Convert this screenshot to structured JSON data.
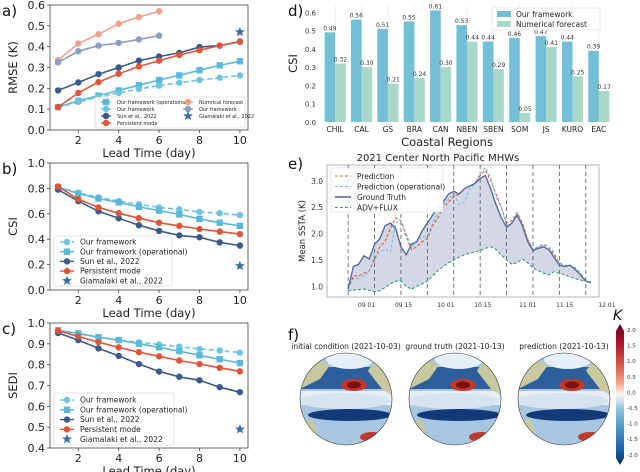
{
  "panels": {
    "a": {
      "label": "a)"
    },
    "b": {
      "label": "b)"
    },
    "c": {
      "label": "c)"
    },
    "d": {
      "label": "d)"
    },
    "e": {
      "label": "e)"
    },
    "f": {
      "label": "f)"
    }
  },
  "colors": {
    "our_framework": "#6ec3e0",
    "our_framework_operational": "#5bb8d9",
    "sun": "#3a5a8c",
    "persistent": "#e0553a",
    "numerical": "#f0a08a",
    "our_framework_short": "#8a9bc4",
    "giamalaki": "#3a6aa8",
    "bar_ours": "#74bfd8",
    "bar_numerical": "#a8d8c8",
    "fill_area": "#c9cedd",
    "gt_line": "#5a6a9a",
    "adv_flux": "#2f9a80"
  },
  "chart_data": [
    {
      "id": "a",
      "type": "line",
      "title": "",
      "xlabel": "Lead Time (day)",
      "ylabel": "RMSE (K)",
      "xlim": [
        0.6,
        10.4
      ],
      "ylim": [
        0.0,
        0.6
      ],
      "xticks": [
        2,
        4,
        6,
        8,
        10
      ],
      "yticks": [
        0.0,
        0.1,
        0.2,
        0.3,
        0.4,
        0.5,
        0.6
      ],
      "legend_position": "lower-right",
      "series": [
        {
          "name": "Our framework (operational)",
          "marker": "square",
          "dash": false,
          "color_key": "our_framework_operational",
          "x": [
            1,
            2,
            3,
            4,
            5,
            6,
            7,
            8,
            9,
            10
          ],
          "values": [
            0.11,
            0.14,
            0.165,
            0.19,
            0.215,
            0.24,
            0.262,
            0.287,
            0.31,
            0.33
          ]
        },
        {
          "name": "Our framework",
          "marker": "circle",
          "dash": true,
          "color_key": "our_framework",
          "x": [
            1,
            2,
            3,
            4,
            5,
            6,
            7,
            8,
            9,
            10
          ],
          "values": [
            0.108,
            0.135,
            0.158,
            0.178,
            0.197,
            0.213,
            0.227,
            0.24,
            0.251,
            0.262
          ]
        },
        {
          "name": "Sun et al., 2022",
          "marker": "circle",
          "dash": false,
          "color_key": "sun",
          "x": [
            1,
            2,
            3,
            4,
            5,
            6,
            7,
            8,
            9,
            10
          ],
          "values": [
            0.19,
            0.228,
            0.268,
            0.3,
            0.333,
            0.353,
            0.37,
            0.398,
            0.405,
            0.425
          ]
        },
        {
          "name": "Persistent mode",
          "marker": "circle",
          "dash": false,
          "color_key": "persistent",
          "x": [
            1,
            2,
            3,
            4,
            5,
            6,
            7,
            8,
            9,
            10
          ],
          "values": [
            0.11,
            0.178,
            0.23,
            0.27,
            0.305,
            0.333,
            0.36,
            0.383,
            0.405,
            0.423
          ]
        },
        {
          "name": "Numrical forecast",
          "marker": "circle",
          "dash": false,
          "color_key": "numerical",
          "x": [
            1,
            2,
            3,
            4,
            5,
            6
          ],
          "values": [
            0.335,
            0.415,
            0.46,
            0.51,
            0.542,
            0.57
          ]
        },
        {
          "name": "Our framework",
          "marker": "circle",
          "dash": false,
          "color_key": "our_framework_short",
          "x": [
            1,
            2,
            3,
            4,
            5,
            6
          ],
          "values": [
            0.325,
            0.378,
            0.405,
            0.418,
            0.435,
            0.453
          ]
        },
        {
          "name": "Giamalaki et al., 2022",
          "marker": "star",
          "dash": false,
          "color_key": "giamalaki",
          "x": [
            10
          ],
          "values": [
            0.47
          ]
        }
      ]
    },
    {
      "id": "b",
      "type": "line",
      "xlabel": "Lead Time (day)",
      "ylabel": "CSI",
      "xlim": [
        0.6,
        10.4
      ],
      "ylim": [
        0.0,
        1.0
      ],
      "xticks": [
        2,
        4,
        6,
        8,
        10
      ],
      "yticks": [
        0.0,
        0.2,
        0.4,
        0.6,
        0.8,
        1.0
      ],
      "legend_position": "lower-left",
      "series": [
        {
          "name": "Our framework",
          "marker": "circle",
          "dash": true,
          "color_key": "our_framework",
          "x": [
            1,
            2,
            3,
            4,
            5,
            6,
            7,
            8,
            9,
            10
          ],
          "values": [
            0.81,
            0.765,
            0.73,
            0.7,
            0.675,
            0.65,
            0.635,
            0.615,
            0.605,
            0.59
          ]
        },
        {
          "name": "Our framework (operational)",
          "marker": "square",
          "dash": false,
          "color_key": "our_framework_operational",
          "x": [
            1,
            2,
            3,
            4,
            5,
            6,
            7,
            8,
            9,
            10
          ],
          "values": [
            0.81,
            0.76,
            0.72,
            0.69,
            0.655,
            0.625,
            0.595,
            0.56,
            0.53,
            0.505
          ]
        },
        {
          "name": "Sun et al., 2022",
          "marker": "circle",
          "dash": false,
          "color_key": "sun",
          "x": [
            1,
            2,
            3,
            4,
            5,
            6,
            7,
            8,
            9,
            10
          ],
          "values": [
            0.79,
            0.7,
            0.62,
            0.565,
            0.51,
            0.465,
            0.43,
            0.415,
            0.375,
            0.35
          ]
        },
        {
          "name": "Persistent mode",
          "marker": "circle",
          "dash": false,
          "color_key": "persistent",
          "x": [
            1,
            2,
            3,
            4,
            5,
            6,
            7,
            8,
            9,
            10
          ],
          "values": [
            0.815,
            0.715,
            0.65,
            0.605,
            0.565,
            0.53,
            0.505,
            0.48,
            0.46,
            0.44
          ]
        },
        {
          "name": "Giamalaki et al., 2022",
          "marker": "star",
          "dash": false,
          "color_key": "giamalaki",
          "x": [
            10
          ],
          "values": [
            0.19
          ]
        }
      ]
    },
    {
      "id": "c",
      "type": "line",
      "xlabel": "Lead Time (day)",
      "ylabel": "SEDI",
      "xlim": [
        0.6,
        10.4
      ],
      "ylim": [
        0.4,
        1.0
      ],
      "xticks": [
        2,
        4,
        6,
        8,
        10
      ],
      "yticks": [
        0.4,
        0.5,
        0.6,
        0.7,
        0.8,
        0.9,
        1.0
      ],
      "legend_position": "lower-left",
      "series": [
        {
          "name": "Our framework",
          "marker": "circle",
          "dash": true,
          "color_key": "our_framework",
          "x": [
            1,
            2,
            3,
            4,
            5,
            6,
            7,
            8,
            9,
            10
          ],
          "values": [
            0.965,
            0.948,
            0.932,
            0.918,
            0.907,
            0.897,
            0.887,
            0.875,
            0.868,
            0.858
          ]
        },
        {
          "name": "Our framework (operational)",
          "marker": "square",
          "dash": false,
          "color_key": "our_framework_operational",
          "x": [
            1,
            2,
            3,
            4,
            5,
            6,
            7,
            8,
            9,
            10
          ],
          "values": [
            0.965,
            0.95,
            0.932,
            0.918,
            0.9,
            0.883,
            0.865,
            0.845,
            0.826,
            0.808
          ]
        },
        {
          "name": "Sun et al., 2022",
          "marker": "circle",
          "dash": false,
          "color_key": "sun",
          "x": [
            1,
            2,
            3,
            4,
            5,
            6,
            7,
            8,
            9,
            10
          ],
          "values": [
            0.952,
            0.918,
            0.878,
            0.842,
            0.803,
            0.767,
            0.742,
            0.725,
            0.692,
            0.668
          ]
        },
        {
          "name": "Persistent mode",
          "marker": "circle",
          "dash": false,
          "color_key": "persistent",
          "x": [
            1,
            2,
            3,
            4,
            5,
            6,
            7,
            8,
            9,
            10
          ],
          "values": [
            0.963,
            0.935,
            0.908,
            0.883,
            0.86,
            0.84,
            0.82,
            0.803,
            0.785,
            0.768
          ]
        },
        {
          "name": "Giamalaki et al., 2022",
          "marker": "star",
          "dash": false,
          "color_key": "giamalaki",
          "x": [
            10
          ],
          "values": [
            0.49
          ]
        }
      ]
    },
    {
      "id": "d",
      "type": "bar",
      "xlabel": "Coastal Regions",
      "ylabel": "CSI",
      "ylim": [
        0.0,
        0.64
      ],
      "yticks": [
        0.0,
        0.1,
        0.2,
        0.3,
        0.4,
        0.5,
        0.6
      ],
      "legend_position": "top-right",
      "categories": [
        "CHIL",
        "CAL",
        "GS",
        "BRA",
        "CAN",
        "NBEN",
        "SBEN",
        "SOM",
        "JS",
        "KURO",
        "EAC"
      ],
      "series": [
        {
          "name": "Our framework",
          "color_key": "bar_ours",
          "values": [
            0.49,
            0.56,
            0.51,
            0.55,
            0.61,
            0.53,
            0.44,
            0.46,
            0.47,
            0.44,
            0.39
          ]
        },
        {
          "name": "Numerical forecast",
          "color_key": "bar_numerical",
          "values": [
            0.32,
            0.3,
            0.21,
            0.24,
            0.3,
            0.44,
            0.29,
            0.05,
            0.41,
            0.25,
            0.17
          ]
        }
      ]
    },
    {
      "id": "e",
      "type": "line",
      "title": "2021 Center North Pacific MHWs",
      "xlabel": "",
      "ylabel": "Mean SSTA (K)",
      "xlim_days": [
        -8,
        95
      ],
      "x_origin": "2021-08-25",
      "ylim": [
        0.8,
        3.3
      ],
      "yticks": [
        1.0,
        1.5,
        2.0,
        2.5,
        3.0
      ],
      "xtick_labels": [
        "09 01",
        "09 15",
        "10 01",
        "10 15",
        "11 01",
        "11 15",
        "12 01"
      ],
      "xtick_days": [
        7,
        21,
        37,
        51,
        68,
        82,
        98
      ],
      "vlines_days": [
        0,
        10,
        20,
        30,
        40,
        50,
        60,
        70,
        80,
        90
      ],
      "legend_position": "top-left",
      "series": [
        {
          "name": "Prediction",
          "style": "dashed",
          "color_key": "persistent",
          "x": [
            0,
            2,
            4,
            6,
            8,
            10,
            12,
            14,
            16,
            18,
            20,
            22,
            24,
            26,
            28,
            30,
            32,
            34,
            36,
            38,
            40,
            42,
            44,
            46,
            48,
            50,
            52,
            54,
            56,
            58,
            60,
            62,
            64,
            66,
            68,
            70,
            72,
            74,
            76,
            78,
            80,
            82,
            84,
            86,
            88,
            90,
            92
          ],
          "values": [
            0.95,
            1.2,
            1.2,
            1.25,
            1.3,
            1.5,
            1.75,
            1.85,
            2.1,
            2.3,
            2.25,
            1.95,
            1.7,
            1.75,
            1.85,
            1.9,
            2.15,
            2.3,
            2.5,
            2.6,
            2.7,
            2.75,
            2.85,
            2.9,
            2.95,
            3.1,
            3.2,
            3.0,
            2.75,
            2.5,
            2.2,
            2.25,
            2.4,
            2.2,
            1.9,
            1.7,
            1.75,
            1.8,
            1.75,
            1.6,
            1.45,
            1.38,
            1.4,
            1.35,
            1.25,
            1.1,
            1.08
          ]
        },
        {
          "name": "Prediction (operational)",
          "style": "dashed",
          "color_key": "our_framework",
          "x": [
            0,
            2,
            4,
            6,
            8,
            10,
            12,
            14,
            16,
            18,
            20,
            22,
            24,
            26,
            28,
            30,
            32,
            34,
            36,
            38,
            40,
            42,
            44,
            46,
            48,
            50,
            52,
            54,
            56,
            58,
            60,
            62,
            64,
            66,
            68,
            70,
            72,
            74,
            76,
            78,
            80,
            82,
            84,
            86,
            88,
            90,
            92
          ],
          "values": [
            0.95,
            1.15,
            1.15,
            1.2,
            1.28,
            1.6,
            1.65,
            1.7,
            1.65,
            2.2,
            2.25,
            2.0,
            1.75,
            1.85,
            1.95,
            1.95,
            2.2,
            2.4,
            2.55,
            2.65,
            2.75,
            2.55,
            2.6,
            2.85,
            2.95,
            3.15,
            3.25,
            3.05,
            2.7,
            2.5,
            2.15,
            2.2,
            2.4,
            2.15,
            1.9,
            1.7,
            1.75,
            1.78,
            1.75,
            1.65,
            1.45,
            1.4,
            1.4,
            1.36,
            1.25,
            1.1,
            1.08
          ]
        },
        {
          "name": "Ground Truth",
          "style": "solid",
          "color_key": "gt_line",
          "x": [
            0,
            2,
            4,
            6,
            8,
            10,
            12,
            14,
            16,
            18,
            20,
            22,
            24,
            26,
            28,
            30,
            32,
            34,
            36,
            38,
            40,
            42,
            44,
            46,
            48,
            50,
            52,
            54,
            56,
            58,
            60,
            62,
            64,
            66,
            68,
            70,
            72,
            74,
            76,
            78,
            80,
            82,
            84,
            86,
            88,
            90,
            92
          ],
          "values": [
            0.95,
            1.38,
            1.42,
            1.58,
            1.52,
            1.8,
            1.9,
            2.15,
            2.2,
            2.1,
            1.75,
            1.6,
            1.8,
            1.85,
            2.05,
            2.2,
            2.35,
            2.5,
            2.6,
            2.75,
            2.8,
            2.75,
            2.85,
            2.9,
            2.95,
            3.05,
            3.1,
            2.85,
            2.55,
            2.3,
            2.12,
            2.2,
            2.35,
            2.15,
            1.85,
            1.68,
            1.72,
            1.75,
            1.7,
            1.55,
            1.4,
            1.38,
            1.4,
            1.32,
            1.22,
            1.1,
            1.07
          ]
        },
        {
          "name": "ADV+FLUX",
          "style": "dashed",
          "color_key": "adv_flux",
          "x": [
            0,
            2,
            4,
            6,
            8,
            10,
            12,
            14,
            16,
            18,
            20,
            22,
            24,
            26,
            28,
            30,
            32,
            34,
            36,
            38,
            40,
            42,
            44,
            46,
            48,
            50,
            52,
            54,
            56,
            58,
            60,
            62,
            64,
            66,
            68,
            70,
            72,
            74,
            76,
            78,
            80,
            82,
            84,
            86,
            88,
            90,
            92
          ],
          "values": [
            0.92,
            0.93,
            0.94,
            0.95,
            0.93,
            0.9,
            0.92,
            0.98,
            1.05,
            1.1,
            1.1,
            1.0,
            0.95,
            1.0,
            1.05,
            1.1,
            1.2,
            1.3,
            1.38,
            1.45,
            1.5,
            1.55,
            1.6,
            1.63,
            1.65,
            1.68,
            1.72,
            1.75,
            1.7,
            1.6,
            1.5,
            1.42,
            1.45,
            1.52,
            1.45,
            1.35,
            1.3,
            1.25,
            1.22,
            1.28,
            1.25,
            1.22,
            1.18,
            1.15,
            1.12,
            1.1,
            1.08
          ]
        }
      ]
    },
    {
      "id": "f",
      "type": "heatmap",
      "subplot_titles": [
        "initial condition (2021-10-03)",
        "ground truth (2021-10-13)",
        "prediction (2021-10-13)"
      ],
      "colorbar": {
        "label": "K",
        "min": -2.0,
        "max": 2.0,
        "ticks": [
          "2.0",
          "1.5",
          "1.0",
          "0.5",
          "0.0",
          "-0.5",
          "-1.0",
          "-1.5",
          "-2.0"
        ],
        "colormap": "RdBu_r"
      }
    }
  ]
}
